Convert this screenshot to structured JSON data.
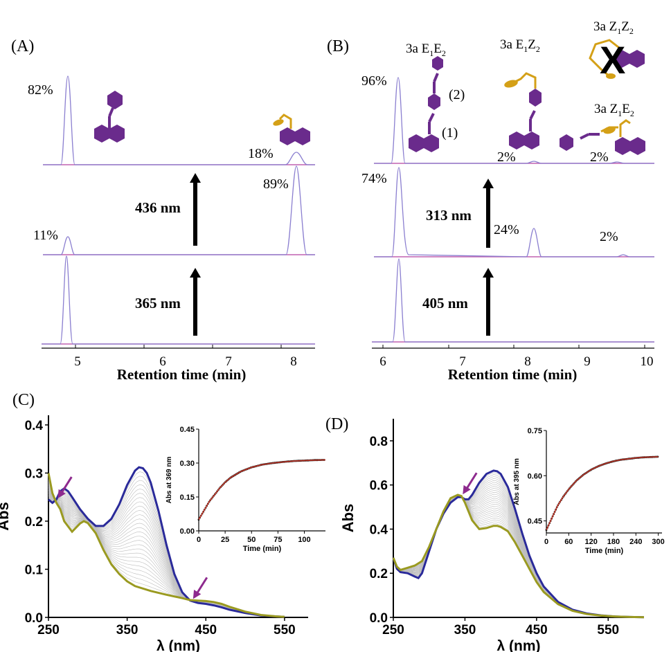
{
  "colors": {
    "trace": "#8B7FD0",
    "baseline": "#C060B0",
    "purple": "#6A2B8C",
    "gold": "#D4A017",
    "arrow": "#000000",
    "navy": "#2A2A9A",
    "olive": "#9A9A20",
    "gray": "#BDBDBD",
    "fit": "#C0392B",
    "magenta_arrow": "#8E2A8E"
  },
  "panel_A": {
    "label": "(A)",
    "xlabel": "Retention time (min)",
    "xticks": [
      "5",
      "6",
      "7",
      "8"
    ],
    "pct_top_left": "82%",
    "pct_top_right": "18%",
    "pct_mid_right": "89%",
    "pct_mid_left": "11%",
    "arrow_mid": "436 nm",
    "arrow_bottom": "365 nm"
  },
  "panel_B": {
    "label": "(B)",
    "xlabel": "Retention time (min)",
    "xticks": [
      "6",
      "7",
      "8",
      "9",
      "10"
    ],
    "iso_EE_pre": "3a E",
    "iso_EE_s1": "1",
    "iso_EE_mid": "E",
    "iso_EE_s2": "2",
    "iso_EZ_pre": "3a E",
    "iso_EZ_s1": "1",
    "iso_EZ_mid": "Z",
    "iso_EZ_s2": "2",
    "iso_ZZ_pre": "3a Z",
    "iso_ZZ_s1": "1",
    "iso_ZZ_mid": "Z",
    "iso_ZZ_s2": "2",
    "iso_ZE_pre": "3a Z",
    "iso_ZE_s1": "1",
    "iso_ZE_mid": "E",
    "iso_ZE_s2": "2",
    "cross": "X",
    "site_1": "(1)",
    "site_2": "(2)",
    "pct_top_main": "96%",
    "pct_top_a": "2%",
    "pct_top_b": "2%",
    "pct_mid_main": "74%",
    "pct_mid_a": "24%",
    "pct_mid_b": "2%",
    "arrow_mid": "313 nm",
    "arrow_bottom": "405 nm"
  },
  "chart_data": [
    {
      "type": "line",
      "panel": "C",
      "label": "(C)",
      "xlabel": "λ (nm)",
      "ylabel": "Abs",
      "xlim": [
        250,
        580
      ],
      "ylim": [
        0,
        0.42
      ],
      "xticks": [
        "250",
        "350",
        "450",
        "550"
      ],
      "yticks": [
        "0.0",
        "0.1",
        "0.2",
        "0.3",
        "0.4"
      ],
      "series": [
        {
          "color": "#2A2A9A",
          "x": [
            250,
            255,
            260,
            265,
            270,
            275,
            280,
            290,
            300,
            310,
            320,
            330,
            340,
            350,
            360,
            365,
            370,
            375,
            380,
            390,
            400,
            410,
            420,
            430,
            440,
            450,
            460,
            470,
            480,
            500,
            520,
            540,
            550
          ],
          "y": [
            0.245,
            0.238,
            0.245,
            0.262,
            0.268,
            0.262,
            0.25,
            0.225,
            0.205,
            0.19,
            0.19,
            0.205,
            0.235,
            0.275,
            0.305,
            0.312,
            0.31,
            0.3,
            0.28,
            0.22,
            0.15,
            0.09,
            0.052,
            0.035,
            0.03,
            0.028,
            0.025,
            0.021,
            0.016,
            0.009,
            0.004,
            0.002,
            0.001
          ]
        },
        {
          "color": "#9A9A20",
          "x": [
            250,
            255,
            260,
            265,
            270,
            280,
            290,
            295,
            300,
            310,
            320,
            330,
            340,
            350,
            360,
            380,
            400,
            420,
            430,
            440,
            450,
            460,
            470,
            480,
            500,
            520,
            540,
            550
          ],
          "y": [
            0.3,
            0.258,
            0.238,
            0.225,
            0.2,
            0.178,
            0.195,
            0.2,
            0.196,
            0.175,
            0.14,
            0.11,
            0.09,
            0.075,
            0.065,
            0.055,
            0.047,
            0.04,
            0.036,
            0.035,
            0.034,
            0.032,
            0.028,
            0.022,
            0.012,
            0.005,
            0.002,
            0.001
          ]
        }
      ],
      "isosbestic": [
        {
          "x": 260,
          "y": 0.243
        },
        {
          "x": 432,
          "y": 0.034
        }
      ],
      "inset": {
        "type": "line",
        "xlabel": "Time (min)",
        "ylabel": "Abs at 369 nm",
        "xlim": [
          0,
          120
        ],
        "ylim": [
          0,
          0.45
        ],
        "xticks": [
          "0",
          "25",
          "50",
          "75",
          "100"
        ],
        "yticks": [
          "0.00",
          "0.15",
          "0.30",
          "0.45"
        ],
        "x": [
          0,
          5,
          10,
          15,
          20,
          25,
          30,
          40,
          50,
          60,
          70,
          80,
          90,
          100,
          110,
          120
        ],
        "y": [
          0.05,
          0.09,
          0.13,
          0.16,
          0.19,
          0.215,
          0.235,
          0.263,
          0.281,
          0.293,
          0.3,
          0.305,
          0.309,
          0.311,
          0.313,
          0.314
        ]
      }
    },
    {
      "type": "line",
      "panel": "D",
      "label": "(D)",
      "xlabel": "λ (nm)",
      "ylabel": "Abs",
      "xlim": [
        250,
        600
      ],
      "ylim": [
        0,
        0.9
      ],
      "xticks": [
        "250",
        "350",
        "450",
        "550"
      ],
      "yticks": [
        "0.0",
        "0.2",
        "0.4",
        "0.6",
        "0.8"
      ],
      "series": [
        {
          "color": "#2A2A9A",
          "x": [
            250,
            255,
            260,
            270,
            280,
            285,
            290,
            300,
            310,
            320,
            330,
            340,
            345,
            350,
            355,
            360,
            370,
            380,
            390,
            395,
            400,
            410,
            420,
            430,
            440,
            450,
            460,
            480,
            500,
            520,
            540,
            560,
            580,
            600
          ],
          "y": [
            0.27,
            0.22,
            0.205,
            0.2,
            0.185,
            0.178,
            0.2,
            0.3,
            0.4,
            0.47,
            0.52,
            0.545,
            0.545,
            0.535,
            0.535,
            0.555,
            0.61,
            0.65,
            0.665,
            0.662,
            0.65,
            0.59,
            0.49,
            0.38,
            0.28,
            0.2,
            0.14,
            0.07,
            0.035,
            0.018,
            0.009,
            0.004,
            0.002,
            0.001
          ]
        },
        {
          "color": "#9A9A20",
          "x": [
            250,
            255,
            260,
            270,
            280,
            290,
            300,
            310,
            320,
            330,
            340,
            345,
            350,
            360,
            370,
            380,
            390,
            395,
            400,
            410,
            420,
            430,
            440,
            450,
            460,
            480,
            500,
            520,
            540,
            560,
            580,
            600
          ],
          "y": [
            0.27,
            0.23,
            0.215,
            0.225,
            0.235,
            0.255,
            0.32,
            0.4,
            0.48,
            0.54,
            0.555,
            0.55,
            0.52,
            0.44,
            0.4,
            0.405,
            0.415,
            0.415,
            0.41,
            0.39,
            0.34,
            0.28,
            0.22,
            0.16,
            0.115,
            0.06,
            0.03,
            0.015,
            0.008,
            0.004,
            0.002,
            0.001
          ]
        }
      ],
      "isosbestic": [
        {
          "x": 345,
          "y": 0.548
        }
      ],
      "inset": {
        "type": "line",
        "xlabel": "Time (min)",
        "ylabel": "Abs at 395 nm",
        "xlim": [
          0,
          310
        ],
        "ylim": [
          0.41,
          0.75
        ],
        "xticks": [
          "0",
          "60",
          "120",
          "180",
          "240",
          "300"
        ],
        "yticks": [
          "0.45",
          "0.60",
          "0.75"
        ],
        "x": [
          0,
          15,
          30,
          45,
          60,
          80,
          100,
          120,
          140,
          160,
          180,
          200,
          220,
          240,
          260,
          280,
          300
        ],
        "y": [
          0.42,
          0.46,
          0.5,
          0.53,
          0.555,
          0.583,
          0.604,
          0.62,
          0.632,
          0.641,
          0.648,
          0.653,
          0.656,
          0.659,
          0.661,
          0.662,
          0.663
        ]
      }
    }
  ]
}
